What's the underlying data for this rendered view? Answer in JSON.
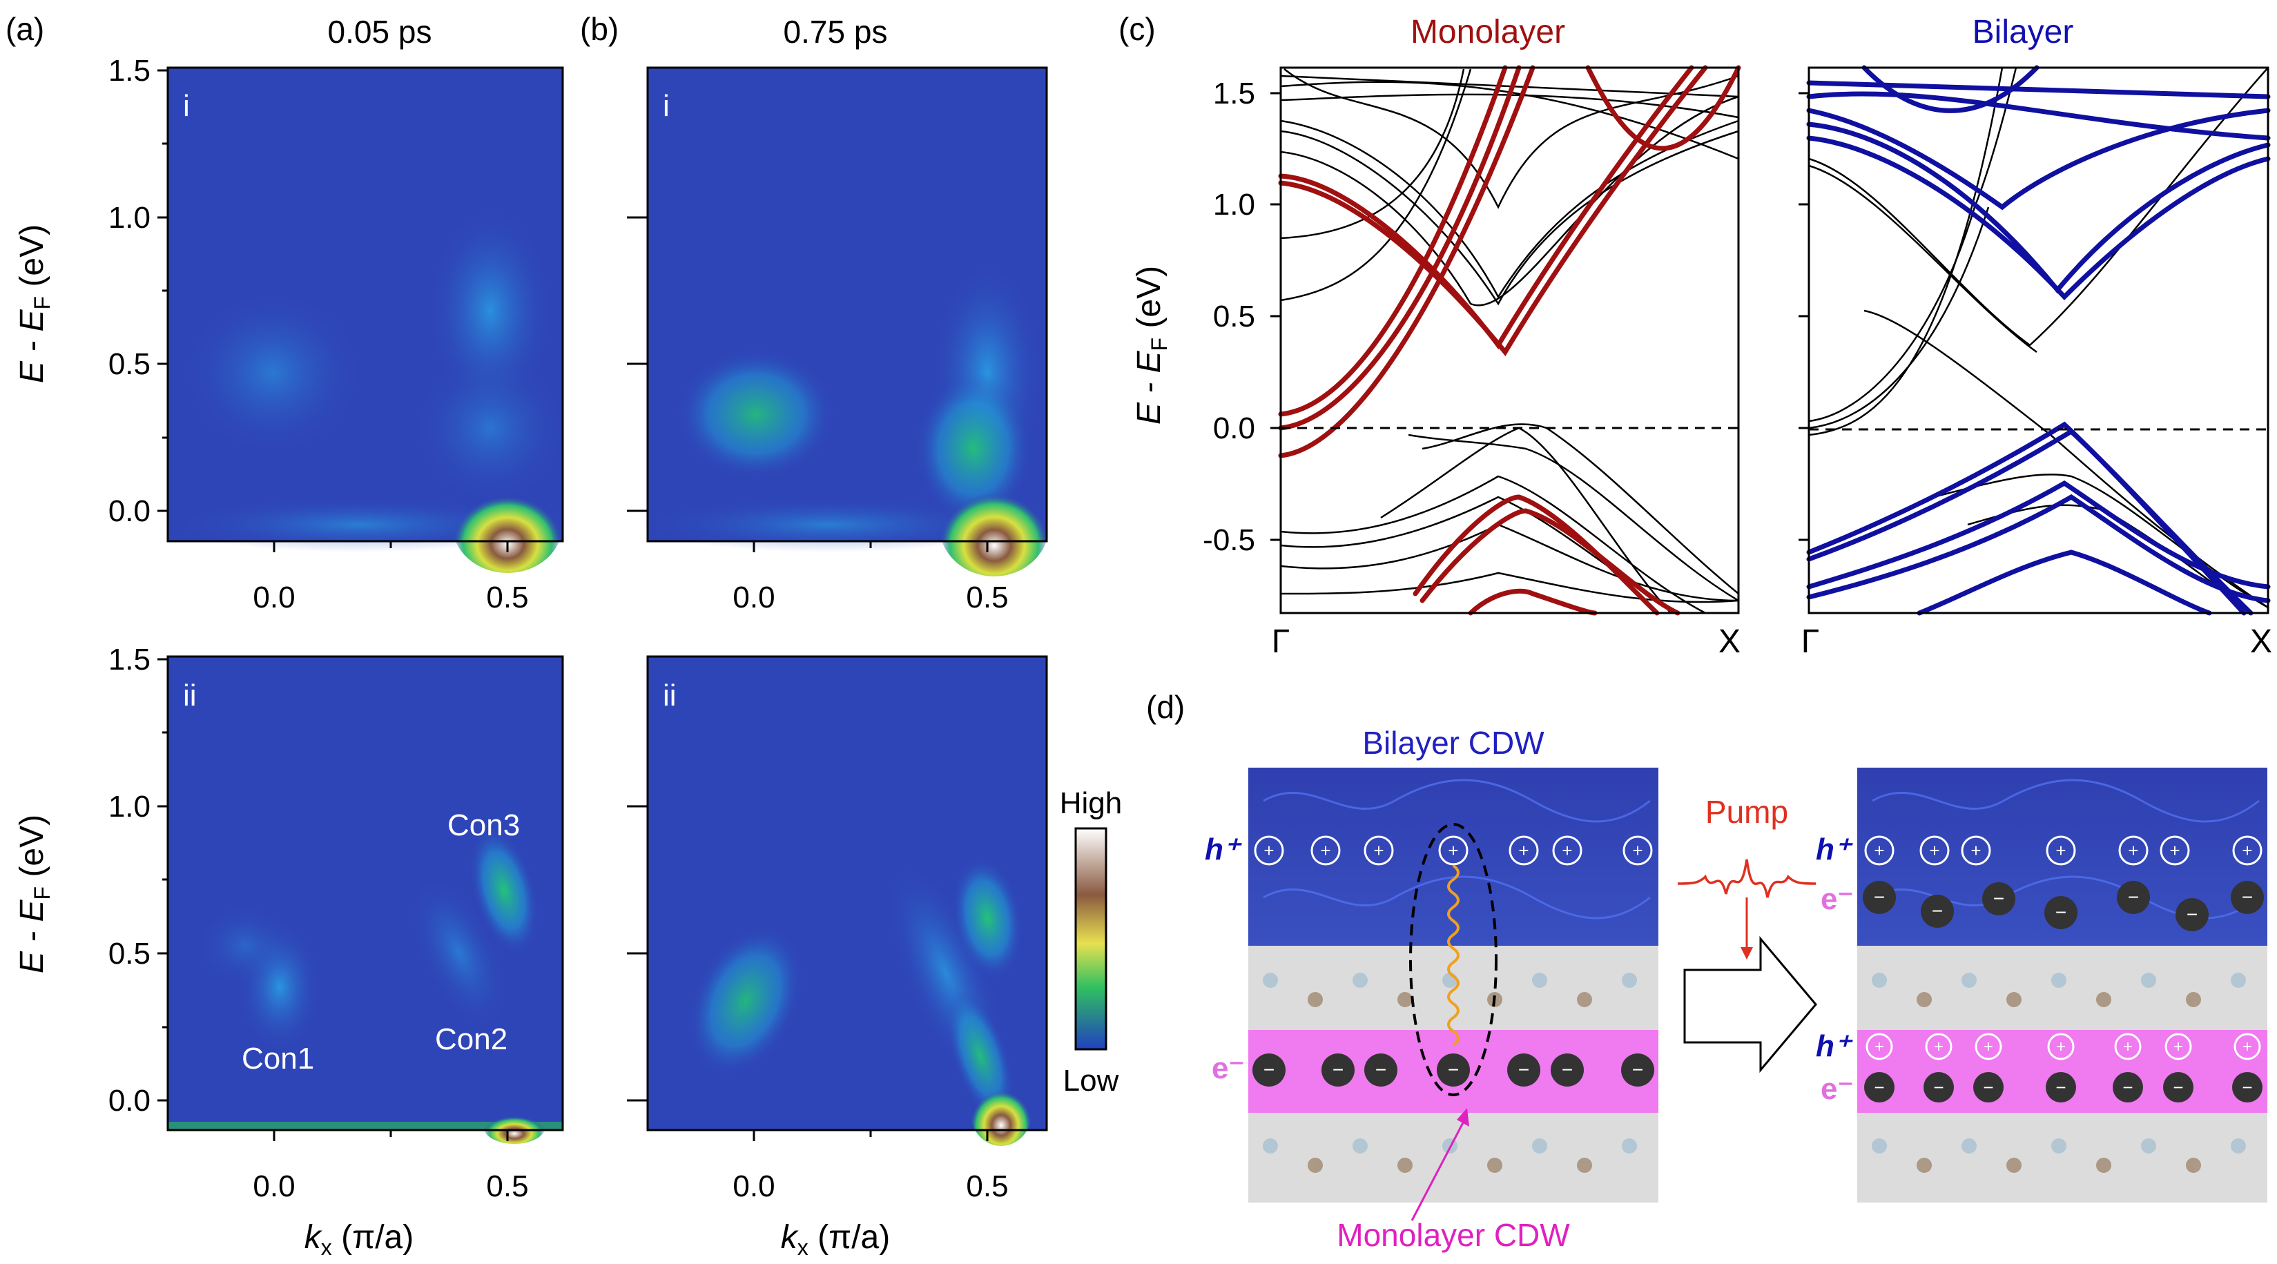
{
  "panels": {
    "a": {
      "letter": "(a)",
      "time": "0.05 ps"
    },
    "b": {
      "letter": "(b)",
      "time": "0.75 ps"
    },
    "c": {
      "letter": "(c)",
      "left_title": "Monolayer",
      "right_title": "Bilayer"
    },
    "d": {
      "letter": "(d)"
    }
  },
  "sub_labels": {
    "top": "i",
    "bottom": "ii"
  },
  "arpes": {
    "ylabel_E": "E",
    "ylabel_rest": " - E",
    "ylabel_sub": "F",
    "ylabel_unit": " (eV)",
    "yticks": [
      "1.5",
      "1.0",
      "0.5",
      "0.0"
    ],
    "xticks": [
      "0.0",
      "0.5"
    ],
    "xlabel_k": "k",
    "xlabel_sub": "x",
    "xlabel_unit": " (π/a)",
    "peaks": {
      "con1": "Con1",
      "con2": "Con2",
      "con3": "Con3"
    },
    "colorbar": {
      "high": "High",
      "low": "Low"
    }
  },
  "bands": {
    "yticks": [
      "1.5",
      "1.0",
      "0.5",
      "0.0",
      "-0.5"
    ],
    "x_start": "Γ",
    "x_end": "X",
    "ylabel_E": "E",
    "ylabel_rest": " - E",
    "ylabel_sub": "F",
    "ylabel_unit": " (eV)"
  },
  "schematic": {
    "bilayer_cdw": "Bilayer CDW",
    "monolayer_cdw": "Monolayer CDW",
    "pump": "Pump",
    "h_plus": "h⁺",
    "e_minus": "e⁻",
    "plus": "+",
    "minus": "−"
  },
  "colors": {
    "monolayer": "#a01010",
    "bilayer": "#1010a0",
    "cdw_blue": "#3050e8",
    "cdw_pink": "#f070f0",
    "pump_red": "#e03020"
  }
}
